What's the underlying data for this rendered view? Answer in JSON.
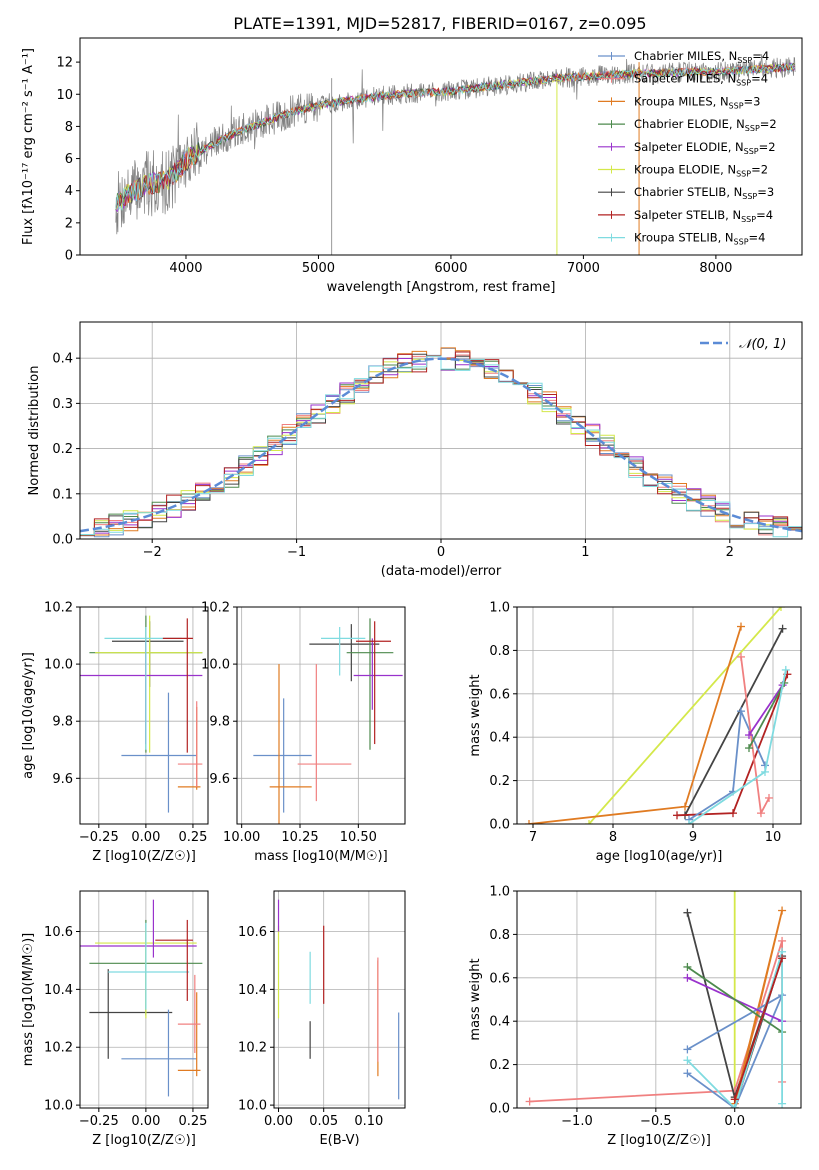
{
  "figure": {
    "title": "PLATE=1391, MJD=52817, FIBERID=0167, z=0.095"
  },
  "legend_models": [
    {
      "label": "Chabrier MILES, N",
      "sub": "SSP",
      "n": "=4",
      "color": "#6a90c9"
    },
    {
      "label": "Salpeter MILES, N",
      "sub": "SSP",
      "n": "=4",
      "color": "#f08080"
    },
    {
      "label": "Kroupa MILES, N",
      "sub": "SSP",
      "n": "=3",
      "color": "#e07b22"
    },
    {
      "label": "Chabrier ELODIE, N",
      "sub": "SSP",
      "n": "=2",
      "color": "#4d8a4d"
    },
    {
      "label": "Salpeter ELODIE, N",
      "sub": "SSP",
      "n": "=2",
      "color": "#9932cc"
    },
    {
      "label": "Kroupa ELODIE, N",
      "sub": "SSP",
      "n": "=2",
      "color": "#d4e84a"
    },
    {
      "label": "Chabrier STELIB, N",
      "sub": "SSP",
      "n": "=3",
      "color": "#444444"
    },
    {
      "label": "Salpeter STELIB, N",
      "sub": "SSP",
      "n": "=4",
      "color": "#b22222"
    },
    {
      "label": "Kroupa STELIB, N",
      "sub": "SSP",
      "n": "=4",
      "color": "#7fdbe0"
    }
  ],
  "chart_data": [
    {
      "id": "spectrum",
      "type": "line",
      "xlabel": "wavelength [Angstrom, rest frame]",
      "ylabel_html": "Flux [fλ10⁻¹⁷ erg cm⁻² s⁻¹ A⁻¹]",
      "ylabel": "Flux [f_lambda 10^-17 erg cm^-2 s^-1 A^-1]",
      "xlim": [
        3200,
        8650
      ],
      "ylim": [
        0,
        13.5
      ],
      "xticks": [
        4000,
        5000,
        6000,
        7000,
        8000
      ],
      "yticks": [
        0,
        2,
        4,
        6,
        8,
        10,
        12
      ],
      "grid": false,
      "legend_position": "top-right",
      "continuum_x": [
        3470,
        3550,
        3700,
        3850,
        3950,
        4000,
        4100,
        4250,
        4400,
        4600,
        4800,
        5000,
        5200,
        5400,
        5600,
        5800,
        6000,
        6200,
        6400,
        6600,
        6800,
        7000,
        7200,
        7400,
        7600,
        7800,
        8000,
        8200,
        8400,
        8600
      ],
      "continuum_y": [
        3.1,
        3.7,
        4.4,
        4.6,
        5.3,
        5.9,
        6.4,
        7.1,
        7.7,
        8.3,
        8.9,
        9.3,
        9.6,
        9.8,
        10.0,
        10.1,
        10.2,
        10.4,
        10.6,
        10.8,
        11.0,
        11.1,
        11.2,
        11.3,
        11.3,
        11.4,
        11.4,
        11.5,
        11.6,
        11.7
      ]
    },
    {
      "id": "residuals",
      "type": "histogram",
      "xlabel": "(data-model)/error",
      "ylabel": "Normed distribution",
      "xlim": [
        -2.5,
        2.5
      ],
      "ylim": [
        0,
        0.48
      ],
      "xticks": [
        -2,
        -1,
        0,
        1,
        2
      ],
      "yticks": [
        0.0,
        0.1,
        0.2,
        0.3,
        0.4
      ],
      "grid": true,
      "legend": "𝒩(0, 1)",
      "legend_position": "top-right",
      "bin_width": 0.1
    },
    {
      "id": "age_vs_Z",
      "type": "errorbar",
      "xlabel": "Z [log10(Z/Z☉)]",
      "ylabel": "age  [log10(age/yr)]",
      "xlim": [
        -0.35,
        0.33
      ],
      "ylim": [
        9.44,
        10.2
      ],
      "xticks": [
        -0.25,
        0.0,
        0.25
      ],
      "yticks": [
        9.6,
        9.8,
        10.0,
        10.2
      ],
      "grid": true,
      "points": [
        {
          "x": 0.02,
          "y": 10.08,
          "xerr": [
            0.2,
            0.18
          ],
          "yerr": [
            0.16,
            0.07
          ],
          "color": "#444444"
        },
        {
          "x": 0.0,
          "y": 10.04,
          "xerr": [
            0.3,
            0.3
          ],
          "yerr": [
            0.35,
            0.13
          ],
          "color": "#4d8a4d"
        },
        {
          "x": 0.02,
          "y": 10.04,
          "xerr": [
            0.29,
            0.28
          ],
          "yerr": [
            0.35,
            0.13
          ],
          "color": "#d4e84a"
        },
        {
          "x": 0.0,
          "y": 9.96,
          "xerr": [
            0.42,
            0.3
          ],
          "yerr": [
            0.24,
            0.12
          ],
          "color": "#9932cc"
        },
        {
          "x": 0.0,
          "y": 10.09,
          "xerr": [
            0.22,
            0.19
          ],
          "yerr": [
            0.39,
            0.04
          ],
          "color": "#7fdbe0"
        },
        {
          "x": 0.22,
          "y": 10.09,
          "xerr": [
            0.13,
            0.03
          ],
          "yerr": [
            0.4,
            0.07
          ],
          "color": "#b22222"
        },
        {
          "x": 0.12,
          "y": 9.68,
          "xerr": [
            0.25,
            0.15
          ],
          "yerr": [
            0.2,
            0.22
          ],
          "color": "#6a90c9"
        },
        {
          "x": 0.27,
          "y": 9.57,
          "xerr": [
            0.1,
            0.02
          ],
          "yerr": [
            0.01,
            0.28
          ],
          "color": "#e07b22"
        },
        {
          "x": 0.27,
          "y": 9.65,
          "xerr": [
            0.1,
            0.03
          ],
          "yerr": [
            0.08,
            0.22
          ],
          "color": "#f08080"
        }
      ]
    },
    {
      "id": "age_vs_mass",
      "type": "errorbar",
      "xlabel": "mass [log10(M/M☉)]",
      "ylabel": "",
      "xlim": [
        9.98,
        10.7
      ],
      "ylim": [
        9.44,
        10.2
      ],
      "xticks": [
        10.0,
        10.25,
        10.5
      ],
      "yticks": [
        9.6,
        9.8,
        10.0,
        10.2
      ],
      "grid": true,
      "points": [
        {
          "x": 10.47,
          "y": 10.07,
          "xerr": [
            0.18,
            0.12
          ],
          "yerr": [
            0.13,
            0.07
          ],
          "color": "#444444"
        },
        {
          "x": 10.55,
          "y": 10.04,
          "xerr": [
            0.1,
            0.1
          ],
          "yerr": [
            0.34,
            0.12
          ],
          "color": "#4d8a4d"
        },
        {
          "x": 10.56,
          "y": 9.96,
          "xerr": [
            0.08,
            0.13
          ],
          "yerr": [
            0.12,
            0.13
          ],
          "color": "#9932cc"
        },
        {
          "x": 10.42,
          "y": 10.09,
          "xerr": [
            0.08,
            0.11
          ],
          "yerr": [
            0.13,
            0.04
          ],
          "color": "#7fdbe0"
        },
        {
          "x": 10.57,
          "y": 10.08,
          "xerr": [
            0.08,
            0.07
          ],
          "yerr": [
            0.36,
            0.07
          ],
          "color": "#b22222"
        },
        {
          "x": 10.18,
          "y": 9.68,
          "xerr": [
            0.13,
            0.12
          ],
          "yerr": [
            0.2,
            0.2
          ],
          "color": "#6a90c9"
        },
        {
          "x": 10.16,
          "y": 9.57,
          "xerr": [
            0.04,
            0.14
          ],
          "yerr": [
            0.14,
            0.43
          ],
          "color": "#e07b22"
        },
        {
          "x": 10.32,
          "y": 9.65,
          "xerr": [
            0.08,
            0.15
          ],
          "yerr": [
            0.13,
            0.35
          ],
          "color": "#f08080"
        }
      ]
    },
    {
      "id": "mass_weight_vs_age",
      "type": "line",
      "xlabel": "age  [log10(age/yr)]",
      "ylabel": "mass weight",
      "xlim": [
        6.8,
        10.35
      ],
      "ylim": [
        0,
        1.0
      ],
      "xticks": [
        7,
        8,
        9,
        10
      ],
      "yticks": [
        0.0,
        0.2,
        0.4,
        0.6,
        0.8,
        1.0
      ],
      "grid": true,
      "series": [
        {
          "color": "#d4e84a",
          "x": [
            7.7,
            10.1
          ],
          "y": [
            0.0,
            1.0
          ]
        },
        {
          "color": "#e07b22",
          "x": [
            6.95,
            8.9,
            9.6
          ],
          "y": [
            0.0,
            0.08,
            0.91
          ]
        },
        {
          "color": "#444444",
          "x": [
            8.9,
            10.12
          ],
          "y": [
            0.04,
            0.9
          ]
        },
        {
          "color": "#b22222",
          "x": [
            8.8,
            9.5,
            10.18
          ],
          "y": [
            0.04,
            0.05,
            0.69
          ]
        },
        {
          "color": "#6a90c9",
          "x": [
            8.95,
            9.5,
            9.6,
            9.9
          ],
          "y": [
            0.02,
            0.15,
            0.52,
            0.27
          ]
        },
        {
          "color": "#f08080",
          "x": [
            9.6,
            9.85,
            9.95
          ],
          "y": [
            0.77,
            0.05,
            0.12
          ]
        },
        {
          "color": "#9932cc",
          "x": [
            9.7,
            10.12
          ],
          "y": [
            0.41,
            0.64
          ]
        },
        {
          "color": "#4d8a4d",
          "x": [
            9.7,
            10.14
          ],
          "y": [
            0.35,
            0.65
          ]
        },
        {
          "color": "#7fdbe0",
          "x": [
            8.95,
            9.9,
            10.16
          ],
          "y": [
            0.0,
            0.24,
            0.71
          ]
        }
      ]
    },
    {
      "id": "mass_vs_Z",
      "type": "errorbar",
      "xlabel": "Z [log10(Z/Z☉)]",
      "ylabel": "mass [log10(M/M☉)]",
      "xlim": [
        -0.35,
        0.33
      ],
      "ylim": [
        9.99,
        10.74
      ],
      "xticks": [
        -0.25,
        0.0,
        0.25
      ],
      "yticks": [
        10.0,
        10.2,
        10.4,
        10.6
      ],
      "grid": true,
      "points": [
        {
          "x": -0.2,
          "y": 10.32,
          "xerr": [
            0.1,
            0.34
          ],
          "yerr": [
            0.16,
            0.15
          ],
          "color": "#444444"
        },
        {
          "x": 0.0,
          "y": 10.49,
          "xerr": [
            0.3,
            0.3
          ],
          "yerr": [
            0.18,
            0.15
          ],
          "color": "#4d8a4d"
        },
        {
          "x": 0.0,
          "y": 10.56,
          "xerr": [
            0.27,
            0.27
          ],
          "yerr": [
            0.26,
            0.05
          ],
          "color": "#d4e84a"
        },
        {
          "x": 0.04,
          "y": 10.55,
          "xerr": [
            0.42,
            0.23
          ],
          "yerr": [
            0.04,
            0.16
          ],
          "color": "#9932cc"
        },
        {
          "x": 0.0,
          "y": 10.46,
          "xerr": [
            0.2,
            0.23
          ],
          "yerr": [
            0.13,
            0.17
          ],
          "color": "#7fdbe0"
        },
        {
          "x": 0.22,
          "y": 10.57,
          "xerr": [
            0.17,
            0.03
          ],
          "yerr": [
            0.21,
            0.07
          ],
          "color": "#b22222"
        },
        {
          "x": 0.12,
          "y": 10.16,
          "xerr": [
            0.25,
            0.15
          ],
          "yerr": [
            0.13,
            0.17
          ],
          "color": "#6a90c9"
        },
        {
          "x": 0.27,
          "y": 10.12,
          "xerr": [
            0.1,
            0.02
          ],
          "yerr": [
            0.02,
            0.27
          ],
          "color": "#e07b22"
        },
        {
          "x": 0.26,
          "y": 10.28,
          "xerr": [
            0.09,
            0.03
          ],
          "yerr": [
            0.1,
            0.17
          ],
          "color": "#f08080"
        }
      ]
    },
    {
      "id": "mass_vs_ebv",
      "type": "errorbar",
      "xlabel": "E(B-V)",
      "ylabel": "",
      "xlim": [
        -0.005,
        0.14
      ],
      "ylim": [
        9.99,
        10.74
      ],
      "xticks": [
        0.0,
        0.05,
        0.1
      ],
      "yticks": [
        10.0,
        10.2,
        10.4,
        10.6
      ],
      "grid": true,
      "points": [
        {
          "x": 0.0,
          "y": 10.45,
          "yerr": [
            0.15,
            0.17
          ],
          "color": "#d4e84a"
        },
        {
          "x": 0.0,
          "y": 10.62,
          "yerr": [
            0.02,
            0.09
          ],
          "color": "#9932cc"
        },
        {
          "x": 0.035,
          "y": 10.22,
          "yerr": [
            0.06,
            0.07
          ],
          "color": "#444444"
        },
        {
          "x": 0.035,
          "y": 10.43,
          "yerr": [
            0.08,
            0.1
          ],
          "color": "#7fdbe0"
        },
        {
          "x": 0.05,
          "y": 10.48,
          "yerr": [
            0.13,
            0.14
          ],
          "color": "#b22222"
        },
        {
          "x": 0.11,
          "y": 10.3,
          "yerr": [
            0.2,
            0.2
          ],
          "color": "#e07b22"
        },
        {
          "x": 0.11,
          "y": 10.33,
          "yerr": [
            0.18,
            0.18
          ],
          "color": "#f08080"
        },
        {
          "x": 0.133,
          "y": 10.17,
          "yerr": [
            0.15,
            0.15
          ],
          "color": "#6a90c9"
        }
      ]
    },
    {
      "id": "mass_weight_vs_Z",
      "type": "line",
      "xlabel": "Z [log10(Z/Z☉)]",
      "ylabel": "mass weight",
      "xlim": [
        -1.38,
        0.42
      ],
      "ylim": [
        0,
        1.0
      ],
      "xticks": [
        -1.0,
        -0.5,
        0.0
      ],
      "yticks": [
        0.0,
        0.2,
        0.4,
        0.6,
        0.8,
        1.0
      ],
      "grid": true,
      "series": [
        {
          "color": "#d4e84a",
          "x": [
            0.0,
            0.0
          ],
          "y": [
            0.0,
            1.0
          ]
        },
        {
          "color": "#f08080",
          "x": [
            -1.3,
            0.0,
            0.3,
            0.3
          ],
          "y": [
            0.03,
            0.08,
            0.77,
            0.12
          ]
        },
        {
          "color": "#444444",
          "x": [
            -0.3,
            0.0,
            0.3,
            0.0
          ],
          "y": [
            0.9,
            0.05,
            0.7,
            0.0
          ]
        },
        {
          "color": "#e07b22",
          "x": [
            0.0,
            0.3,
            0.0
          ],
          "y": [
            0.02,
            0.91,
            0.0
          ]
        },
        {
          "color": "#6a90c9",
          "x": [
            -0.3,
            0.0,
            0.3,
            -0.3
          ],
          "y": [
            0.16,
            0.0,
            0.52,
            0.27
          ]
        },
        {
          "color": "#9932cc",
          "x": [
            -0.3,
            0.3
          ],
          "y": [
            0.6,
            0.4
          ]
        },
        {
          "color": "#4d8a4d",
          "x": [
            -0.3,
            0.3
          ],
          "y": [
            0.65,
            0.35
          ]
        },
        {
          "color": "#7fdbe0",
          "x": [
            -0.3,
            0.0,
            0.3,
            0.3
          ],
          "y": [
            0.22,
            0.0,
            0.72,
            0.02
          ]
        },
        {
          "color": "#b22222",
          "x": [
            0.0,
            0.3
          ],
          "y": [
            0.04,
            0.69
          ]
        }
      ]
    }
  ]
}
